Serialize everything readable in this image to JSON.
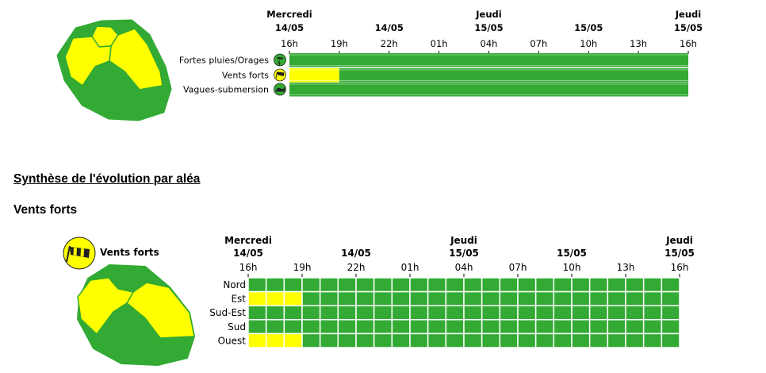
{
  "colors": {
    "green": "#33aa33",
    "yellow": "#ffff00",
    "grid": "#ffffff",
    "map_outline": "#33aa33"
  },
  "time_axis": {
    "date_headers": [
      {
        "day": "Mercredi",
        "date": "14/05"
      },
      {
        "day": "",
        "date": "14/05"
      },
      {
        "day": "Jeudi",
        "date": "15/05"
      },
      {
        "day": "",
        "date": "15/05"
      },
      {
        "day": "Jeudi",
        "date": "15/05"
      }
    ],
    "hours": [
      "16h",
      "19h",
      "22h",
      "01h",
      "04h",
      "07h",
      "10h",
      "13h",
      "16h"
    ]
  },
  "chart_data": [
    {
      "type": "heatmap",
      "title": "",
      "total_hours": 24,
      "rows": [
        {
          "label": "Fortes pluies/Orages",
          "icon": "rain-storm-icon",
          "segments": [
            {
              "hours": 24,
              "level": "green"
            }
          ]
        },
        {
          "label": "Vents forts",
          "icon": "windsock-icon",
          "segments": [
            {
              "hours": 3,
              "level": "yellow"
            },
            {
              "hours": 21,
              "level": "green"
            }
          ]
        },
        {
          "label": "Vagues-submersion",
          "icon": "wave-icon",
          "segments": [
            {
              "hours": 24,
              "level": "green"
            }
          ]
        }
      ]
    },
    {
      "type": "heatmap",
      "title": "Vents forts",
      "total_hours": 24,
      "rows": [
        {
          "label": "Nord",
          "segments": [
            {
              "hours": 24,
              "level": "green"
            }
          ]
        },
        {
          "label": "Est",
          "segments": [
            {
              "hours": 3,
              "level": "yellow"
            },
            {
              "hours": 21,
              "level": "green"
            }
          ]
        },
        {
          "label": "Sud-Est",
          "segments": [
            {
              "hours": 24,
              "level": "green"
            }
          ]
        },
        {
          "label": "Sud",
          "segments": [
            {
              "hours": 24,
              "level": "green"
            }
          ]
        },
        {
          "label": "Ouest",
          "segments": [
            {
              "hours": 3,
              "level": "yellow"
            },
            {
              "hours": 21,
              "level": "green"
            }
          ]
        }
      ]
    }
  ],
  "maps": {
    "overview": {
      "zones": {
        "nord": "yellow",
        "est": "yellow",
        "ouest": "yellow",
        "sud_ouest": "green",
        "sud_est": "green"
      }
    },
    "wind": {
      "legend_label": "Vents forts",
      "zones": {
        "nord": "green",
        "est": "yellow",
        "ouest": "yellow",
        "sud_ouest": "green",
        "sud_est": "green"
      }
    }
  },
  "sections": {
    "synthese_title": "Synthèse de l'évolution par aléa",
    "hazard_title": "Vents forts"
  }
}
